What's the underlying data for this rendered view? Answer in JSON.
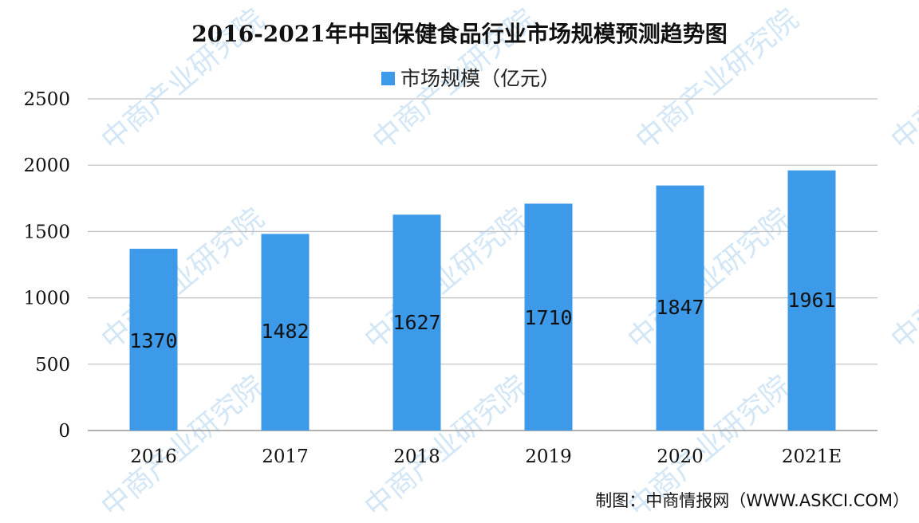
{
  "chart_data": {
    "type": "bar",
    "title": "2016-2021年中国保健食品行业市场规模预测趋势图",
    "categories": [
      "2016",
      "2017",
      "2018",
      "2019",
      "2020",
      "2021E"
    ],
    "series": [
      {
        "name": "市场规模（亿元）",
        "values": [
          1370,
          1482,
          1627,
          1710,
          1847,
          1961
        ],
        "color": "#3d9ae8"
      }
    ],
    "data_labels": [
      "1370",
      "1482",
      "1627",
      "1710",
      "1847",
      "1961"
    ],
    "ylim": [
      0,
      2500
    ],
    "yticks": [
      0,
      500,
      1000,
      1500,
      2000,
      2500
    ],
    "ytick_labels": [
      "0",
      "500",
      "1000",
      "1500",
      "2000",
      "2500"
    ],
    "grid": true,
    "grid_color": "#bfbfbf",
    "legend_position": "top-center",
    "xlabel": "",
    "ylabel": ""
  },
  "source_note": "制图：中商情报网（WWW.ASKCI.COM）",
  "watermark": {
    "text": "中商产业研究院",
    "color": "#7fb8e8"
  }
}
